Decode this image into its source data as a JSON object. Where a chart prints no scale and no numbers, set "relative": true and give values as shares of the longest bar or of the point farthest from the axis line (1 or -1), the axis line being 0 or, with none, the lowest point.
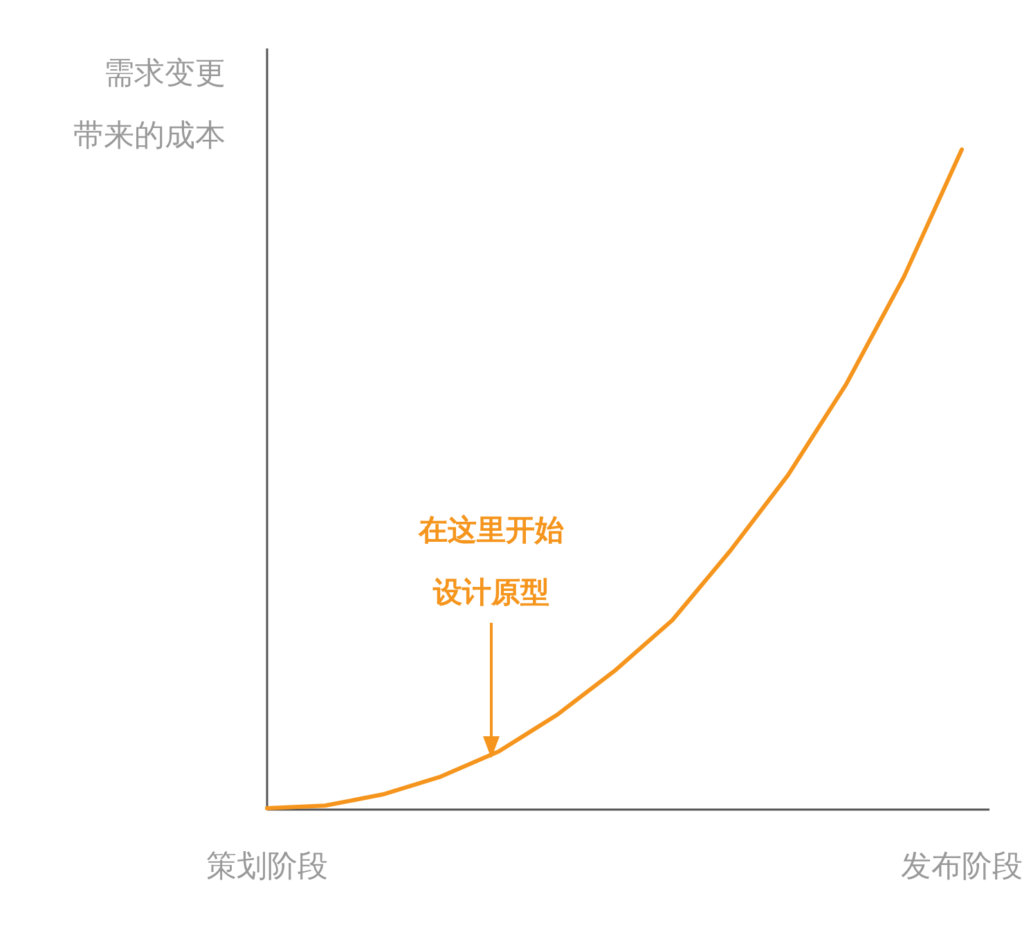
{
  "chart_data": {
    "type": "line",
    "relative": true,
    "ylabel": "需求变更带来的成本",
    "categories": [
      "策划阶段",
      null,
      null,
      null,
      null,
      null,
      null,
      null,
      null,
      null,
      null,
      null,
      "发布阶段"
    ],
    "series": [
      {
        "color": "#f5951d",
        "values": [
          0.002,
          0.006,
          0.023,
          0.05,
          0.088,
          0.143,
          0.21,
          0.287,
          0.392,
          0.507,
          0.644,
          0.807,
          1.0
        ]
      }
    ],
    "annotations": [
      "在这里开始",
      "设计原型"
    ],
    "marker": "none",
    "line_style": "solid"
  }
}
